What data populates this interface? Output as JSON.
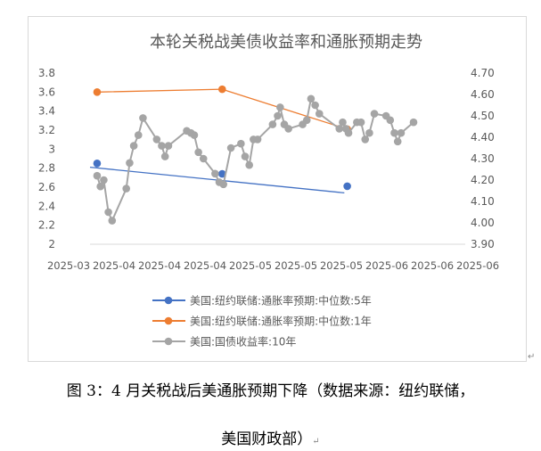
{
  "caption": {
    "line1": "图 3：4 月关税战后美通胀预期下降（数据来源：纽约联储，",
    "line2": "美国财政部）",
    "para_mark": "↵"
  },
  "chart_data": {
    "type": "line",
    "title": "本轮关税战美债收益率和通胀预期走势",
    "x_tick_labels": [
      "2025-03",
      "2025-04",
      "2025-04",
      "2025-04",
      "2025-05",
      "2025-05",
      "2025-05",
      "2025-06",
      "2025-06",
      "2025-06"
    ],
    "x_range": [
      0,
      9
    ],
    "left_axis": {
      "min": 2,
      "max": 3.8,
      "ticks": [
        "2",
        "2.2",
        "2.4",
        "2.6",
        "2.8",
        "3",
        "3.2",
        "3.4",
        "3.6",
        "3.8"
      ]
    },
    "right_axis": {
      "min": 3.9,
      "max": 4.7,
      "ticks": [
        "3.90",
        "4.00",
        "4.10",
        "4.20",
        "4.30",
        "4.40",
        "4.50",
        "4.60",
        "4.70"
      ]
    },
    "series": [
      {
        "name": "美国:纽约联储:通胀率预期:中位数:5年",
        "axis": "left",
        "color": "#4472c4",
        "points": [
          [
            0.17,
            2.85
          ],
          [
            3.17,
            2.74
          ],
          [
            6.17,
            2.61
          ]
        ],
        "trendline": {
          "from": [
            0,
            2.81
          ],
          "to": [
            6.1,
            2.54
          ]
        }
      },
      {
        "name": "美国:纽约联储:通胀率预期:中位数:1年",
        "axis": "left",
        "color": "#ed7d31",
        "points": [
          [
            0.17,
            3.6
          ],
          [
            3.17,
            3.63
          ],
          [
            6.17,
            3.21
          ]
        ]
      },
      {
        "name": "美国:国债收益率:10年",
        "axis": "right",
        "color": "#a5a5a5",
        "points": [
          [
            0.17,
            4.22
          ],
          [
            0.25,
            4.17
          ],
          [
            0.33,
            4.2
          ],
          [
            0.44,
            4.05
          ],
          [
            0.53,
            4.01
          ],
          [
            0.87,
            4.16
          ],
          [
            0.95,
            4.28
          ],
          [
            1.05,
            4.36
          ],
          [
            1.16,
            4.41
          ],
          [
            1.27,
            4.49
          ],
          [
            1.6,
            4.39
          ],
          [
            1.72,
            4.36
          ],
          [
            1.8,
            4.31
          ],
          [
            1.88,
            4.36
          ],
          [
            2.32,
            4.43
          ],
          [
            2.42,
            4.42
          ],
          [
            2.5,
            4.41
          ],
          [
            2.6,
            4.33
          ],
          [
            2.72,
            4.3
          ],
          [
            3.0,
            4.23
          ],
          [
            3.1,
            4.19
          ],
          [
            3.2,
            4.18
          ],
          [
            3.38,
            4.35
          ],
          [
            3.62,
            4.37
          ],
          [
            3.72,
            4.31
          ],
          [
            3.82,
            4.27
          ],
          [
            3.92,
            4.39
          ],
          [
            4.02,
            4.39
          ],
          [
            4.38,
            4.46
          ],
          [
            4.5,
            4.5
          ],
          [
            4.56,
            4.54
          ],
          [
            4.66,
            4.46
          ],
          [
            4.76,
            4.44
          ],
          [
            5.1,
            4.46
          ],
          [
            5.2,
            4.48
          ],
          [
            5.3,
            4.58
          ],
          [
            5.4,
            4.55
          ],
          [
            5.5,
            4.51
          ],
          [
            5.98,
            4.44
          ],
          [
            6.06,
            4.47
          ],
          [
            6.14,
            4.44
          ],
          [
            6.2,
            4.42
          ],
          [
            6.4,
            4.47
          ],
          [
            6.5,
            4.47
          ],
          [
            6.6,
            4.39
          ],
          [
            6.7,
            4.42
          ],
          [
            6.82,
            4.51
          ],
          [
            7.1,
            4.5
          ],
          [
            7.2,
            4.48
          ],
          [
            7.3,
            4.42
          ],
          [
            7.38,
            4.38
          ],
          [
            7.46,
            4.42
          ],
          [
            7.76,
            4.47
          ]
        ]
      }
    ],
    "legend": "bottom",
    "grid": false
  }
}
